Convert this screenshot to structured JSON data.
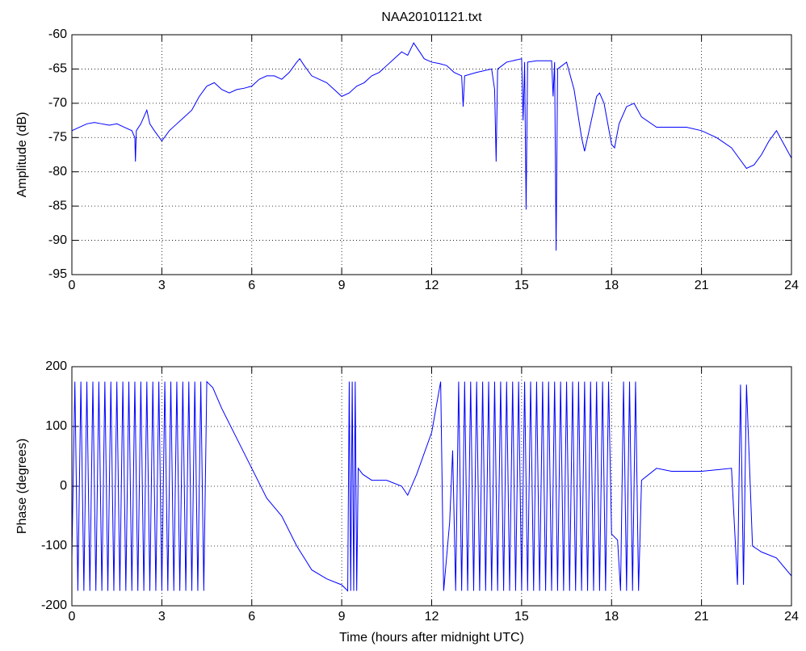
{
  "chart_data": [
    {
      "type": "line",
      "title": "NAA20101121.txt",
      "y_label": "Amplitude (dB)",
      "color": "#0000ff",
      "grid": true,
      "xlim": [
        0,
        24
      ],
      "xticks": [
        0,
        3,
        6,
        9,
        12,
        15,
        18,
        21,
        24
      ],
      "ylim": [
        -95,
        -60
      ],
      "yticks": [
        -95,
        -90,
        -85,
        -80,
        -75,
        -70,
        -65,
        -60
      ],
      "x": [
        0,
        0.25,
        0.5,
        0.75,
        1,
        1.25,
        1.5,
        1.75,
        2,
        2.1,
        2.12,
        2.15,
        2.3,
        2.4,
        2.5,
        2.6,
        2.75,
        3,
        3.25,
        3.5,
        3.75,
        4,
        4.25,
        4.5,
        4.75,
        5,
        5.25,
        5.5,
        5.75,
        6,
        6.25,
        6.5,
        6.75,
        7,
        7.25,
        7.5,
        7.6,
        7.75,
        8,
        8.25,
        8.5,
        8.75,
        9,
        9.25,
        9.5,
        9.75,
        10,
        10.25,
        10.5,
        10.75,
        11,
        11.2,
        11.4,
        11.6,
        11.75,
        12,
        12.25,
        12.5,
        12.75,
        13,
        13.05,
        13.1,
        13.5,
        14,
        14.1,
        14.15,
        14.2,
        14.5,
        15,
        15.05,
        15.1,
        15.15,
        15.2,
        15.5,
        16,
        16.05,
        16.1,
        16.15,
        16.2,
        16.5,
        16.75,
        17,
        17.1,
        17.25,
        17.5,
        17.6,
        17.75,
        18,
        18.1,
        18.25,
        18.5,
        18.75,
        19,
        19.5,
        20,
        20.5,
        21,
        21.5,
        22,
        22.25,
        22.5,
        22.75,
        23,
        23.25,
        23.5,
        23.75,
        24
      ],
      "values": [
        -74,
        -73.5,
        -73,
        -72.8,
        -73,
        -73.2,
        -73,
        -73.5,
        -74,
        -75,
        -78.5,
        -74,
        -73,
        -72,
        -71,
        -73,
        -74,
        -75.5,
        -74,
        -73,
        -72,
        -71,
        -69,
        -67.5,
        -67,
        -68,
        -68.5,
        -68,
        -67.8,
        -67.5,
        -66.5,
        -66,
        -66,
        -66.5,
        -65.5,
        -64,
        -63.5,
        -64.5,
        -66,
        -66.5,
        -67,
        -68,
        -69,
        -68.5,
        -67.5,
        -67,
        -66,
        -65.5,
        -64.5,
        -63.5,
        -62.5,
        -63,
        -61.2,
        -62.5,
        -63.5,
        -64,
        -64.2,
        -64.5,
        -65.5,
        -66,
        -70.5,
        -66,
        -65.5,
        -65,
        -68,
        -78.5,
        -65,
        -64,
        -63.5,
        -72.5,
        -64,
        -85.5,
        -64,
        -63.8,
        -63.8,
        -69,
        -64,
        -91.5,
        -65,
        -64,
        -68,
        -75,
        -77,
        -74,
        -69,
        -68.5,
        -70,
        -76,
        -76.5,
        -73,
        -70.5,
        -70,
        -72,
        -73.5,
        -73.5,
        -73.5,
        -74,
        -75,
        -76.5,
        -78,
        -79.5,
        -79,
        -77.5,
        -75.5,
        -74,
        -76,
        -78
      ]
    },
    {
      "type": "line",
      "x_label": "Time (hours after midnight UTC)",
      "y_label": "Phase (degrees)",
      "color": "#0000ff",
      "grid": true,
      "xlim": [
        0,
        24
      ],
      "xticks": [
        0,
        3,
        6,
        9,
        12,
        15,
        18,
        21,
        24
      ],
      "ylim": [
        -200,
        200
      ],
      "yticks": [
        -200,
        -100,
        0,
        100,
        200
      ],
      "x": [
        0,
        0.1,
        0.2,
        0.3,
        0.4,
        0.5,
        0.6,
        0.7,
        0.8,
        0.9,
        1,
        1.1,
        1.2,
        1.3,
        1.4,
        1.5,
        1.6,
        1.7,
        1.8,
        1.9,
        2,
        2.1,
        2.2,
        2.3,
        2.4,
        2.5,
        2.6,
        2.7,
        2.8,
        2.9,
        3,
        3.1,
        3.2,
        3.3,
        3.4,
        3.5,
        3.6,
        3.7,
        3.8,
        3.9,
        4,
        4.1,
        4.2,
        4.3,
        4.4,
        4.5,
        4.7,
        5,
        5.5,
        6,
        6.5,
        7,
        7.5,
        8,
        8.5,
        9,
        9.2,
        9.25,
        9.3,
        9.35,
        9.4,
        9.45,
        9.5,
        9.55,
        9.7,
        10,
        10.5,
        11,
        11.2,
        11.5,
        12,
        12.3,
        12.4,
        12.6,
        12.7,
        12.8,
        12.9,
        13,
        13.1,
        13.2,
        13.3,
        13.4,
        13.5,
        13.6,
        13.7,
        13.8,
        13.9,
        14,
        14.1,
        14.2,
        14.3,
        14.4,
        14.5,
        14.6,
        14.7,
        14.8,
        14.9,
        15,
        15.1,
        15.2,
        15.3,
        15.4,
        15.5,
        15.6,
        15.7,
        15.8,
        15.9,
        16,
        16.1,
        16.2,
        16.3,
        16.4,
        16.5,
        16.6,
        16.7,
        16.8,
        16.9,
        17,
        17.1,
        17.2,
        17.3,
        17.4,
        17.5,
        17.6,
        17.7,
        17.8,
        17.9,
        18,
        18.2,
        18.3,
        18.4,
        18.5,
        18.6,
        18.7,
        18.8,
        18.9,
        19,
        19.5,
        20,
        21,
        22,
        22.2,
        22.3,
        22.4,
        22.5,
        22.7,
        23,
        23.5,
        24
      ],
      "values": [
        -120,
        175,
        -175,
        175,
        -175,
        175,
        -175,
        175,
        -175,
        175,
        -175,
        175,
        -175,
        175,
        -175,
        175,
        -175,
        175,
        -175,
        175,
        -175,
        175,
        -175,
        175,
        -175,
        175,
        -175,
        175,
        -175,
        175,
        -175,
        175,
        -175,
        175,
        -175,
        175,
        -175,
        175,
        -175,
        175,
        -175,
        175,
        -175,
        175,
        -175,
        175,
        165,
        130,
        80,
        30,
        -20,
        -50,
        -100,
        -140,
        -155,
        -165,
        -175,
        175,
        -175,
        175,
        -175,
        175,
        -175,
        30,
        20,
        10,
        10,
        0,
        -15,
        20,
        90,
        175,
        -175,
        -60,
        60,
        -175,
        175,
        -175,
        175,
        -175,
        175,
        -175,
        175,
        -175,
        175,
        -175,
        175,
        -175,
        175,
        -175,
        175,
        -175,
        175,
        -175,
        175,
        -175,
        175,
        -175,
        175,
        -175,
        175,
        -175,
        175,
        -175,
        175,
        -175,
        175,
        -175,
        175,
        -175,
        175,
        -175,
        175,
        -175,
        175,
        -175,
        175,
        -175,
        175,
        -175,
        175,
        -175,
        175,
        -175,
        175,
        -175,
        175,
        -80,
        -90,
        -175,
        175,
        -175,
        175,
        -175,
        175,
        -175,
        10,
        30,
        25,
        25,
        30,
        -165,
        170,
        -165,
        170,
        -100,
        -110,
        -120,
        -150
      ]
    }
  ]
}
